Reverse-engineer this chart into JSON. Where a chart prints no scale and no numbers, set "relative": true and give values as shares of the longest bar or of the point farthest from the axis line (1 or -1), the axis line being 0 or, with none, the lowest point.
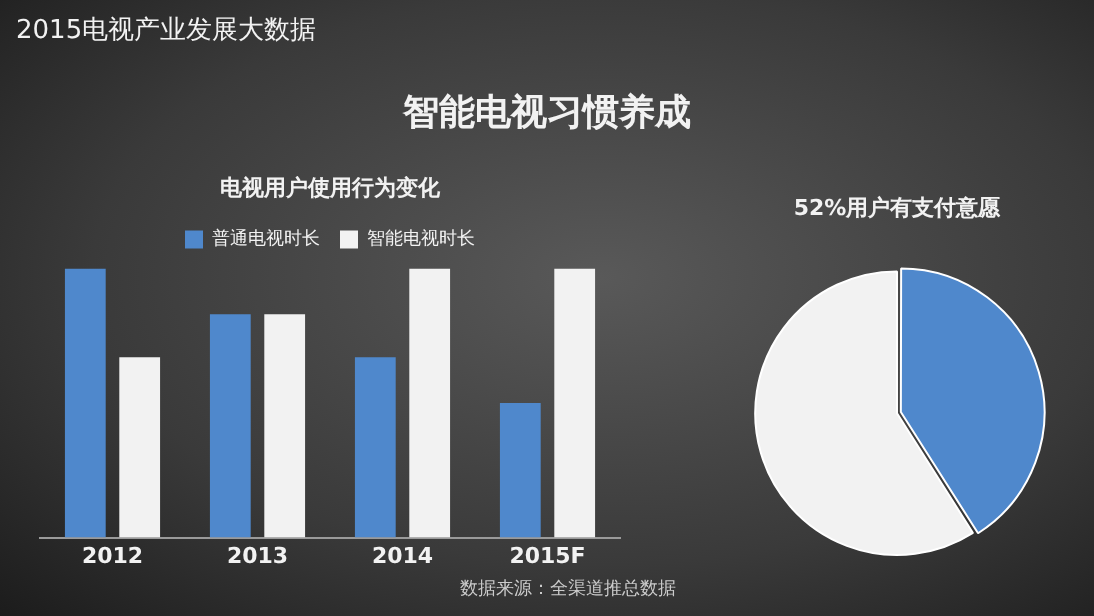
{
  "chart_data": [
    {
      "type": "bar",
      "title": "电视用户使用行为变化",
      "categories": [
        "2012",
        "2013",
        "2014",
        "2015F"
      ],
      "relative": true,
      "legend": "top",
      "grid": false,
      "series": [
        {
          "name": "普通电视时长",
          "color": "#4f88cc",
          "values": [
            1,
            0.83,
            0.67,
            0.5
          ]
        },
        {
          "name": "智能电视时长",
          "color": "#f2f2f2",
          "values": [
            0.67,
            0.83,
            1,
            1
          ]
        }
      ],
      "annotations": [
        "2015电视产业发展大数据",
        "智能电视习惯养成",
        "数据来源：全渠道推总数据"
      ]
    },
    {
      "type": "pie",
      "title": "52%用户有支付意愿",
      "categories": [
        null,
        null
      ],
      "values": [
        41,
        59
      ],
      "colors": [
        "#4f88cc",
        "#f2f2f2"
      ],
      "legend": false
    }
  ]
}
